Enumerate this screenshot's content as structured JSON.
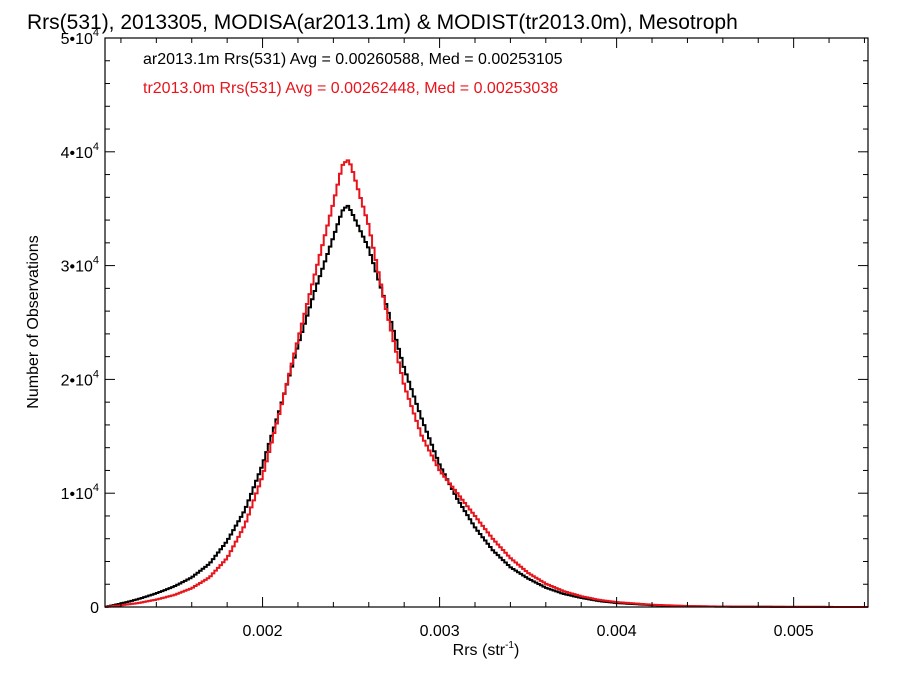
{
  "chart_data": {
    "type": "line",
    "title": "Rrs(531), 2013305, MODISA(ar2013.1m) & MODIST(tr2013.0m), Mesotroph",
    "xlabel": "Rrs (str",
    "xlabel_sup": "-1",
    "xlabel_close": ")",
    "ylabel": "Number of Observations",
    "xlim": [
      0.00111,
      0.00542
    ],
    "ylim": [
      0,
      50000
    ],
    "x_ticks": [
      0.002,
      0.003,
      0.004,
      0.005
    ],
    "x_tick_labels": [
      "0.002",
      "0.003",
      "0.004",
      "0.005"
    ],
    "y_ticks": [
      0,
      10000,
      20000,
      30000,
      40000,
      50000
    ],
    "y_tick_labels": [
      {
        "base": "0",
        "exp": ""
      },
      {
        "base": "1•10",
        "exp": "4"
      },
      {
        "base": "2•10",
        "exp": "4"
      },
      {
        "base": "3•10",
        "exp": "4"
      },
      {
        "base": "4•10",
        "exp": "4"
      },
      {
        "base": "5•10",
        "exp": "4"
      }
    ],
    "grid": false,
    "step": true,
    "annotations": [
      {
        "text": "ar2013.1m Rrs(531) Avg = 0.00260588, Med = 0.00253105",
        "color": "#000000"
      },
      {
        "text": "tr2013.0m Rrs(531) Avg = 0.00262448, Med = 0.00253038",
        "color": "#e8141c"
      }
    ],
    "series": [
      {
        "color": "#000000",
        "points": [
          [
            0.00111,
            0
          ],
          [
            0.0012,
            300
          ],
          [
            0.0013,
            700
          ],
          [
            0.0014,
            1200
          ],
          [
            0.0015,
            1800
          ],
          [
            0.0016,
            2600
          ],
          [
            0.0017,
            3800
          ],
          [
            0.0018,
            5800
          ],
          [
            0.0019,
            8500
          ],
          [
            0.002,
            12500
          ],
          [
            0.0021,
            17500
          ],
          [
            0.0022,
            23000
          ],
          [
            0.0023,
            28000
          ],
          [
            0.0024,
            32500
          ],
          [
            0.00245,
            34800
          ],
          [
            0.00248,
            35300
          ],
          [
            0.0025,
            34800
          ],
          [
            0.0026,
            31500
          ],
          [
            0.0027,
            26500
          ],
          [
            0.0028,
            21000
          ],
          [
            0.0029,
            16500
          ],
          [
            0.003,
            12500
          ],
          [
            0.0031,
            9500
          ],
          [
            0.0032,
            7000
          ],
          [
            0.0033,
            5000
          ],
          [
            0.0034,
            3500
          ],
          [
            0.0035,
            2500
          ],
          [
            0.0036,
            1700
          ],
          [
            0.0037,
            1150
          ],
          [
            0.0038,
            800
          ],
          [
            0.0039,
            520
          ],
          [
            0.004,
            350
          ],
          [
            0.0042,
            160
          ],
          [
            0.0044,
            70
          ],
          [
            0.0046,
            30
          ],
          [
            0.005,
            10
          ],
          [
            0.00542,
            0
          ]
        ]
      },
      {
        "color": "#e8141c",
        "points": [
          [
            0.00111,
            0
          ],
          [
            0.0012,
            150
          ],
          [
            0.0013,
            350
          ],
          [
            0.0014,
            650
          ],
          [
            0.0015,
            1050
          ],
          [
            0.0016,
            1650
          ],
          [
            0.0017,
            2600
          ],
          [
            0.0018,
            4300
          ],
          [
            0.0019,
            7200
          ],
          [
            0.002,
            11500
          ],
          [
            0.0021,
            17300
          ],
          [
            0.0022,
            23500
          ],
          [
            0.0023,
            29500
          ],
          [
            0.0024,
            35500
          ],
          [
            0.00245,
            38800
          ],
          [
            0.00248,
            39300
          ],
          [
            0.0025,
            38800
          ],
          [
            0.0026,
            33500
          ],
          [
            0.0027,
            26000
          ],
          [
            0.0028,
            19500
          ],
          [
            0.0029,
            15000
          ],
          [
            0.003,
            12000
          ],
          [
            0.0031,
            10000
          ],
          [
            0.0032,
            8000
          ],
          [
            0.0033,
            6000
          ],
          [
            0.0034,
            4300
          ],
          [
            0.0035,
            3000
          ],
          [
            0.0036,
            2050
          ],
          [
            0.0037,
            1400
          ],
          [
            0.0038,
            950
          ],
          [
            0.0039,
            630
          ],
          [
            0.004,
            430
          ],
          [
            0.0042,
            200
          ],
          [
            0.0044,
            90
          ],
          [
            0.0046,
            40
          ],
          [
            0.005,
            12
          ],
          [
            0.00542,
            0
          ]
        ]
      }
    ]
  }
}
